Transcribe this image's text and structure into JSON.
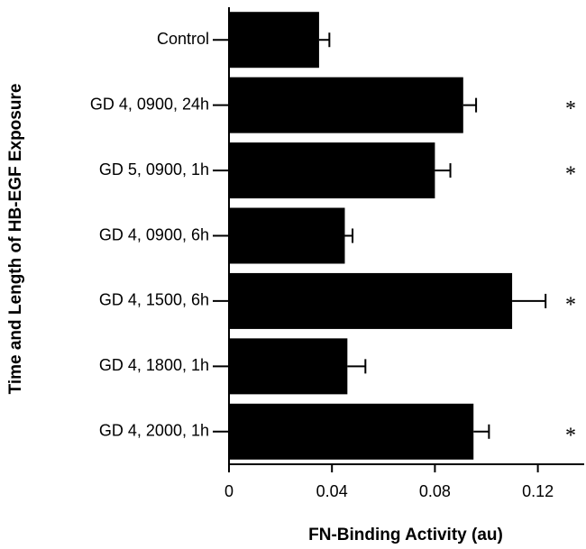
{
  "chart_data": {
    "type": "hbar",
    "x_label": "FN-Binding Activity (au)",
    "y_label": "Time and Length of HB-EGF Exposure",
    "categories": [
      "Control",
      "GD 4, 0900, 24h",
      "GD 5, 0900,  1h",
      "GD 4, 0900,  6h",
      "GD 4, 1500,  6h",
      "GD 4, 1800,  1h",
      "GD 4, 2000,  1h"
    ],
    "values": [
      0.035,
      0.091,
      0.08,
      0.045,
      0.11,
      0.046,
      0.095
    ],
    "errors": [
      0.004,
      0.005,
      0.006,
      0.003,
      0.013,
      0.007,
      0.006
    ],
    "significant": [
      false,
      true,
      true,
      false,
      true,
      false,
      true
    ],
    "significance_marker": "*",
    "color": "#000000",
    "xlim": [
      0,
      0.138
    ],
    "xticks": [
      0,
      0.04,
      0.08,
      0.12
    ]
  }
}
